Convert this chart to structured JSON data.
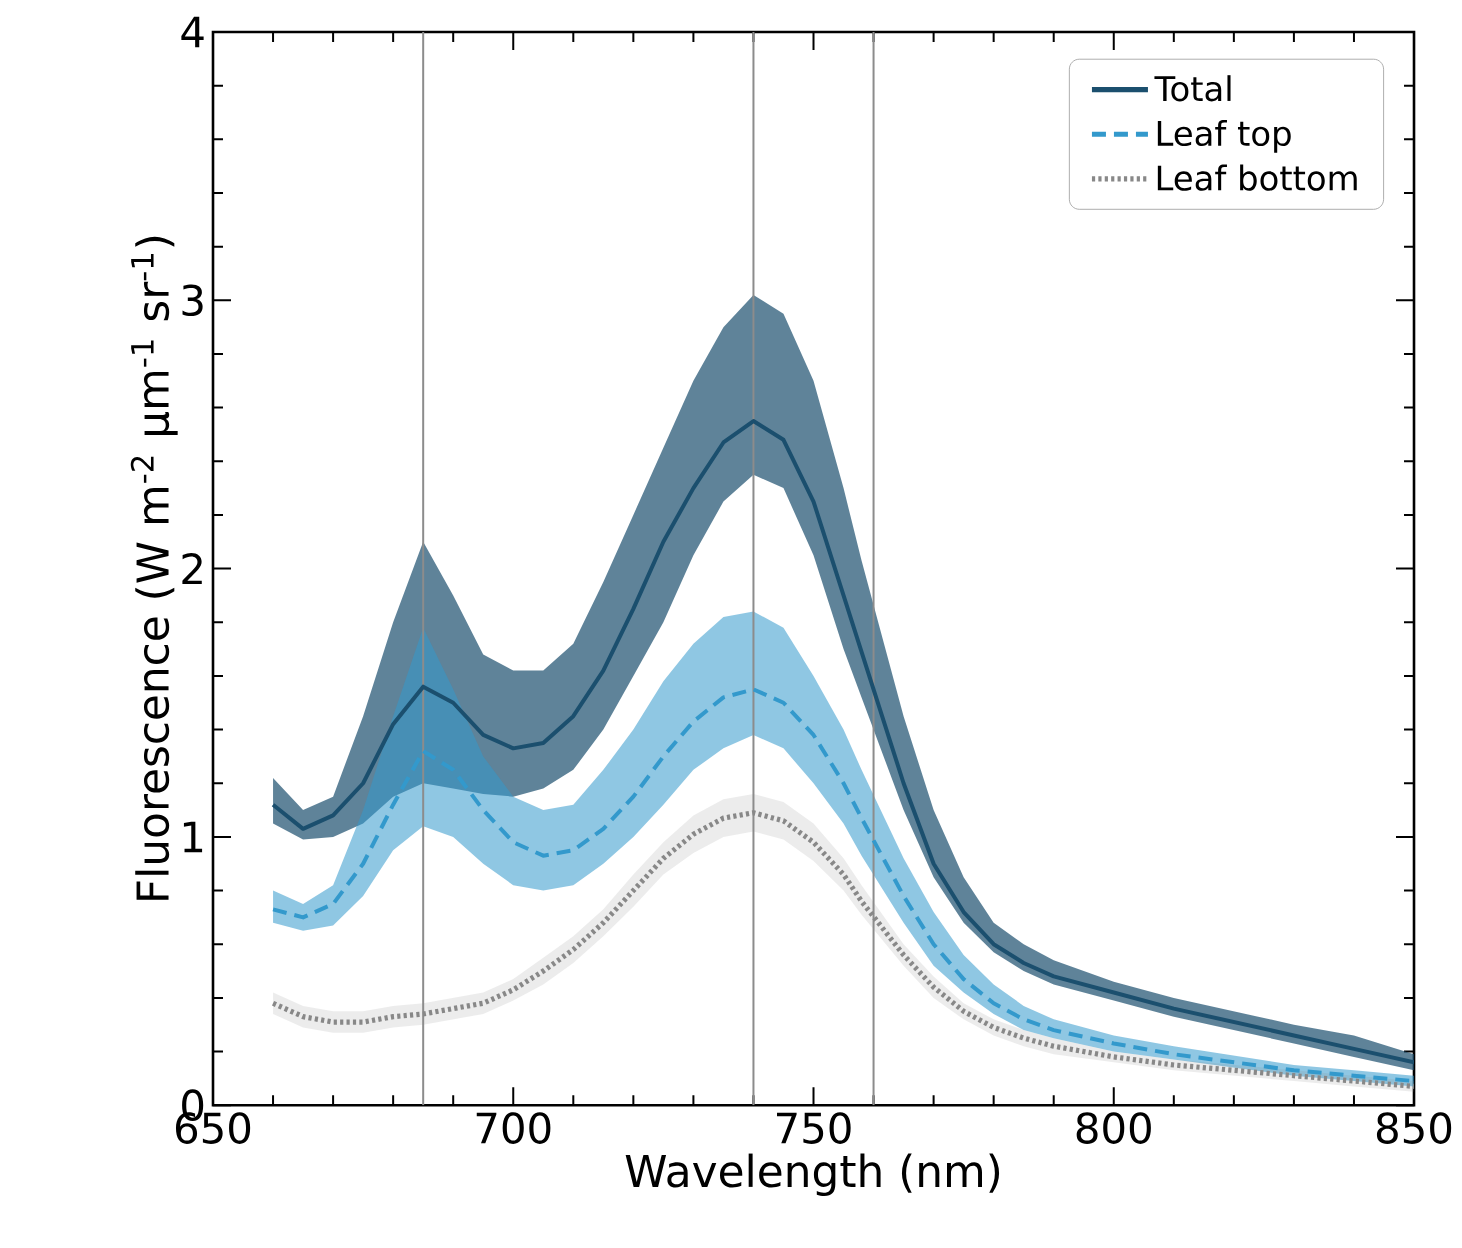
{
  "chart_data": {
    "type": "line",
    "xlabel": "Wavelength (nm)",
    "ylabel": "Fluorescence (W m$^{-2}$ µm$^{-1}$ sr$^{-1}$)",
    "x": [
      660,
      665,
      670,
      675,
      680,
      685,
      690,
      695,
      700,
      705,
      710,
      715,
      720,
      725,
      730,
      735,
      740,
      745,
      750,
      755,
      758,
      765,
      770,
      775,
      780,
      785,
      790,
      800,
      810,
      830,
      840,
      850
    ],
    "series": [
      {
        "name": "Total",
        "color": "#1b4f6e",
        "line_style": "solid",
        "values": [
          1.12,
          1.03,
          1.08,
          1.2,
          1.42,
          1.56,
          1.5,
          1.38,
          1.33,
          1.35,
          1.45,
          1.62,
          1.85,
          2.1,
          2.3,
          2.47,
          2.55,
          2.48,
          2.25,
          1.9,
          1.69,
          1.2,
          0.9,
          0.72,
          0.6,
          0.53,
          0.48,
          0.42,
          0.36,
          0.26,
          0.21,
          0.16
        ],
        "lower": [
          1.05,
          0.99,
          1.0,
          1.05,
          1.15,
          1.2,
          1.18,
          1.16,
          1.15,
          1.18,
          1.25,
          1.4,
          1.6,
          1.8,
          2.05,
          2.25,
          2.35,
          2.3,
          2.05,
          1.7,
          1.52,
          1.1,
          0.85,
          0.68,
          0.57,
          0.5,
          0.45,
          0.39,
          0.33,
          0.23,
          0.18,
          0.13
        ],
        "upper": [
          1.22,
          1.1,
          1.15,
          1.45,
          1.8,
          2.1,
          1.9,
          1.68,
          1.62,
          1.62,
          1.72,
          1.95,
          2.2,
          2.45,
          2.7,
          2.9,
          3.02,
          2.95,
          2.7,
          2.3,
          2.03,
          1.45,
          1.1,
          0.85,
          0.68,
          0.6,
          0.54,
          0.46,
          0.4,
          0.3,
          0.26,
          0.19
        ]
      },
      {
        "name": "Leaf top",
        "color": "#3399cc",
        "line_style": "dashed",
        "values": [
          0.73,
          0.7,
          0.75,
          0.9,
          1.12,
          1.32,
          1.25,
          1.1,
          0.98,
          0.93,
          0.95,
          1.03,
          1.15,
          1.3,
          1.43,
          1.52,
          1.55,
          1.5,
          1.38,
          1.2,
          1.07,
          0.78,
          0.6,
          0.47,
          0.38,
          0.32,
          0.28,
          0.23,
          0.19,
          0.13,
          0.11,
          0.09
        ],
        "lower": [
          0.68,
          0.65,
          0.67,
          0.78,
          0.95,
          1.04,
          1.0,
          0.9,
          0.82,
          0.8,
          0.82,
          0.9,
          1.0,
          1.12,
          1.25,
          1.33,
          1.38,
          1.33,
          1.2,
          1.05,
          0.93,
          0.68,
          0.52,
          0.42,
          0.34,
          0.28,
          0.25,
          0.2,
          0.17,
          0.11,
          0.09,
          0.07
        ],
        "upper": [
          0.8,
          0.75,
          0.82,
          1.1,
          1.45,
          1.78,
          1.55,
          1.3,
          1.15,
          1.1,
          1.12,
          1.25,
          1.4,
          1.58,
          1.72,
          1.82,
          1.84,
          1.78,
          1.6,
          1.4,
          1.25,
          0.92,
          0.72,
          0.56,
          0.45,
          0.37,
          0.32,
          0.26,
          0.22,
          0.15,
          0.13,
          0.11
        ]
      },
      {
        "name": "Leaf bottom",
        "color": "#888888",
        "line_style": "dotted",
        "values": [
          0.38,
          0.33,
          0.31,
          0.31,
          0.33,
          0.34,
          0.36,
          0.38,
          0.43,
          0.5,
          0.58,
          0.68,
          0.8,
          0.92,
          1.01,
          1.07,
          1.09,
          1.06,
          0.98,
          0.86,
          0.76,
          0.56,
          0.44,
          0.35,
          0.29,
          0.25,
          0.22,
          0.18,
          0.15,
          0.11,
          0.09,
          0.07
        ],
        "lower": [
          0.34,
          0.29,
          0.27,
          0.27,
          0.29,
          0.3,
          0.32,
          0.34,
          0.39,
          0.45,
          0.53,
          0.63,
          0.74,
          0.86,
          0.94,
          1.0,
          1.02,
          0.99,
          0.91,
          0.8,
          0.71,
          0.52,
          0.4,
          0.32,
          0.26,
          0.22,
          0.19,
          0.16,
          0.13,
          0.09,
          0.07,
          0.05
        ],
        "upper": [
          0.42,
          0.37,
          0.35,
          0.35,
          0.37,
          0.38,
          0.4,
          0.42,
          0.47,
          0.55,
          0.63,
          0.73,
          0.86,
          0.98,
          1.08,
          1.14,
          1.16,
          1.13,
          1.05,
          0.92,
          0.82,
          0.6,
          0.48,
          0.38,
          0.32,
          0.28,
          0.25,
          0.2,
          0.17,
          0.13,
          0.11,
          0.09
        ]
      }
    ],
    "xlim": [
      650,
      850
    ],
    "ylim": [
      0,
      4
    ],
    "xticks": [
      650,
      700,
      750,
      800,
      850
    ],
    "yticks": [
      0,
      1,
      2,
      3,
      4
    ],
    "ref_lines": [
      {
        "axis": "x",
        "value": 685,
        "color": "#8c8c8c"
      },
      {
        "axis": "x",
        "value": 740,
        "color": "#8c8c8c"
      },
      {
        "axis": "x",
        "value": 760,
        "color": "#8c8c8c"
      }
    ],
    "legend": "top right",
    "grid": false
  }
}
